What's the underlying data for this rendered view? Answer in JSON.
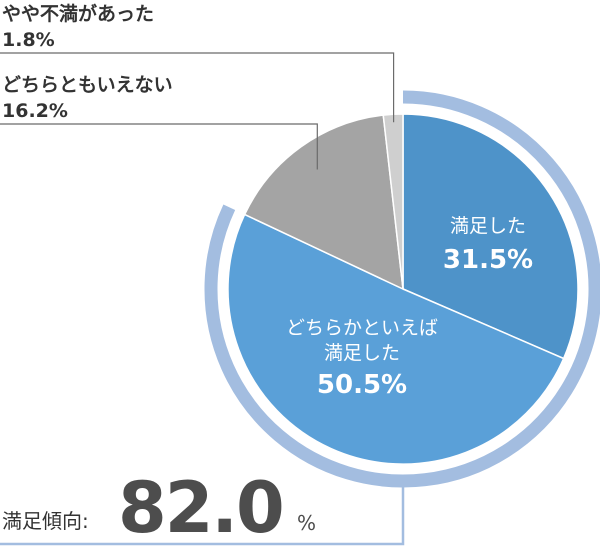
{
  "chart_data": {
    "type": "pie",
    "slices": [
      {
        "label": "満足した",
        "value": 31.5,
        "value_text": "31.5%",
        "color": "#4e93c9"
      },
      {
        "label": "どちらかといえば満足した",
        "label_lines": [
          "どちらかといえば",
          "満足した"
        ],
        "value": 50.5,
        "value_text": "50.5%",
        "color": "#5aa0d8"
      },
      {
        "label": "どちらともいえない",
        "value": 16.2,
        "value_text": "16.2%",
        "color": "#a4a4a4"
      },
      {
        "label": "やや不満があった",
        "value": 1.8,
        "value_text": "1.8%",
        "color": "#cfcfcf"
      }
    ],
    "summary": {
      "label": "満足傾向:",
      "value": "82.0",
      "unit": "%",
      "ring_color": "#a3bde0",
      "value_color": "#4d4d4d"
    }
  }
}
